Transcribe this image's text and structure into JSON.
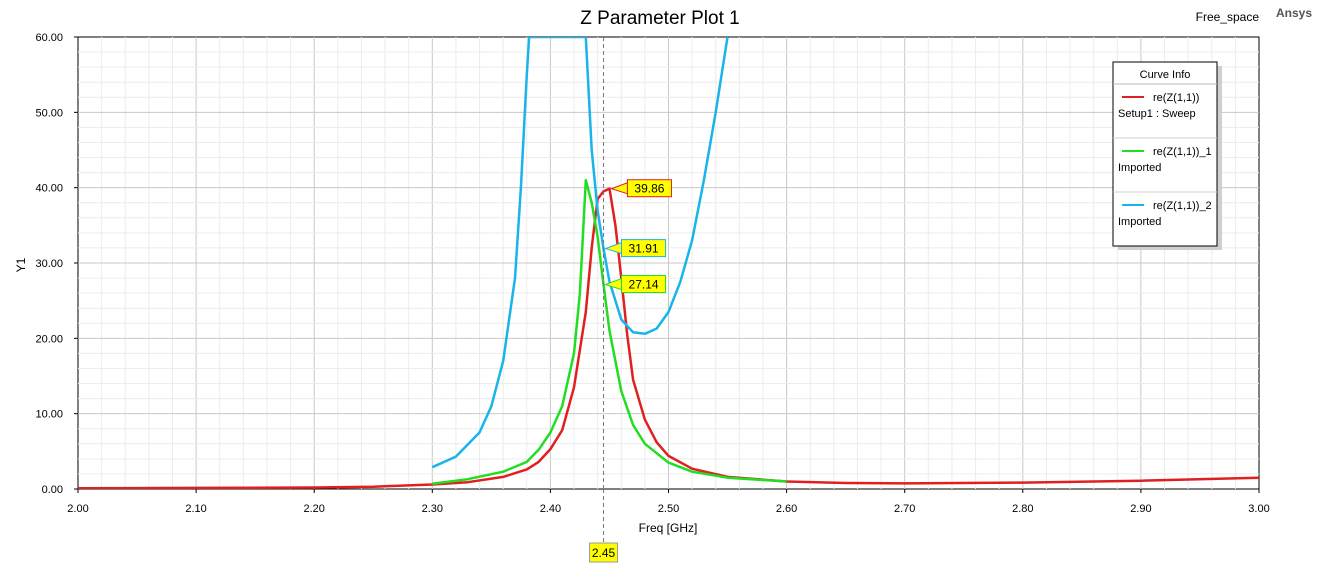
{
  "header": {
    "title": "Z Parameter Plot 1",
    "design": "Free_space",
    "brand": "Ansys"
  },
  "chart_data": {
    "type": "line",
    "title": "Z Parameter Plot 1",
    "xlabel": "Freq [GHz]",
    "ylabel": "Y1",
    "xlim": [
      2.0,
      3.0
    ],
    "ylim": [
      0,
      60
    ],
    "grid": true,
    "legend_title": "Curve Info",
    "legend_position": "top-right",
    "x_ticks": [
      "2.00",
      "2.10",
      "2.20",
      "2.30",
      "2.40",
      "2.50",
      "2.60",
      "2.70",
      "2.80",
      "2.90",
      "3.00"
    ],
    "y_ticks": [
      "0.00",
      "10.00",
      "20.00",
      "30.00",
      "40.00",
      "50.00",
      "60.00"
    ],
    "series": [
      {
        "name": "re(Z(1,1))",
        "source": "Setup1 : Sweep",
        "color": "#e02020",
        "x": [
          2.0,
          2.1,
          2.2,
          2.25,
          2.3,
          2.33,
          2.36,
          2.38,
          2.39,
          2.4,
          2.41,
          2.42,
          2.43,
          2.435,
          2.44,
          2.445,
          2.45,
          2.455,
          2.46,
          2.465,
          2.47,
          2.48,
          2.49,
          2.5,
          2.52,
          2.55,
          2.6,
          2.65,
          2.7,
          2.8,
          2.9,
          3.0
        ],
        "y": [
          0.1,
          0.15,
          0.2,
          0.3,
          0.6,
          0.9,
          1.6,
          2.6,
          3.6,
          5.3,
          7.8,
          13.5,
          23.5,
          32.0,
          38.5,
          39.5,
          39.86,
          35.0,
          28.0,
          20.5,
          14.5,
          9.2,
          6.2,
          4.4,
          2.7,
          1.6,
          1.0,
          0.8,
          0.75,
          0.85,
          1.1,
          1.5
        ]
      },
      {
        "name": "re(Z(1,1))_1",
        "source": "Imported",
        "color": "#22dd22",
        "x": [
          2.3,
          2.33,
          2.36,
          2.38,
          2.39,
          2.4,
          2.41,
          2.42,
          2.425,
          2.43,
          2.435,
          2.44,
          2.445,
          2.45,
          2.46,
          2.47,
          2.48,
          2.5,
          2.52,
          2.55,
          2.6
        ],
        "y": [
          0.7,
          1.3,
          2.3,
          3.6,
          5.2,
          7.5,
          11.0,
          18.0,
          26.0,
          41.0,
          38.0,
          33.5,
          27.14,
          21.0,
          13.0,
          8.5,
          6.0,
          3.5,
          2.3,
          1.5,
          1.0
        ]
      },
      {
        "name": "re(Z(1,1))_2",
        "source": "Imported",
        "color": "#18b4ea",
        "x": [
          2.3,
          2.32,
          2.34,
          2.35,
          2.36,
          2.37,
          2.375,
          2.38,
          2.382,
          2.43,
          2.435,
          2.44,
          2.445,
          2.45,
          2.46,
          2.47,
          2.48,
          2.49,
          2.5,
          2.51,
          2.52,
          2.53,
          2.54,
          2.55
        ],
        "y": [
          2.9,
          4.3,
          7.5,
          11.0,
          17.0,
          28.0,
          40.0,
          55.0,
          60.0,
          60.0,
          45.0,
          37.0,
          31.91,
          27.5,
          22.5,
          20.8,
          20.6,
          21.3,
          23.5,
          27.5,
          33.0,
          41.0,
          50.0,
          60.0
        ]
      }
    ],
    "markers": [
      {
        "series": 0,
        "x": 2.45,
        "y": 39.86,
        "label": "39.86",
        "fill": "#ffff00",
        "stroke": "#e02020"
      },
      {
        "series": 2,
        "x": 2.445,
        "y": 31.91,
        "label": "31.91",
        "fill": "#ffff00",
        "stroke": "#18b4ea"
      },
      {
        "series": 1,
        "x": 2.445,
        "y": 27.14,
        "label": "27.14",
        "fill": "#ffff00",
        "stroke": "#22dd22"
      }
    ],
    "cursor": {
      "x": 2.445,
      "label": "2.45"
    }
  }
}
